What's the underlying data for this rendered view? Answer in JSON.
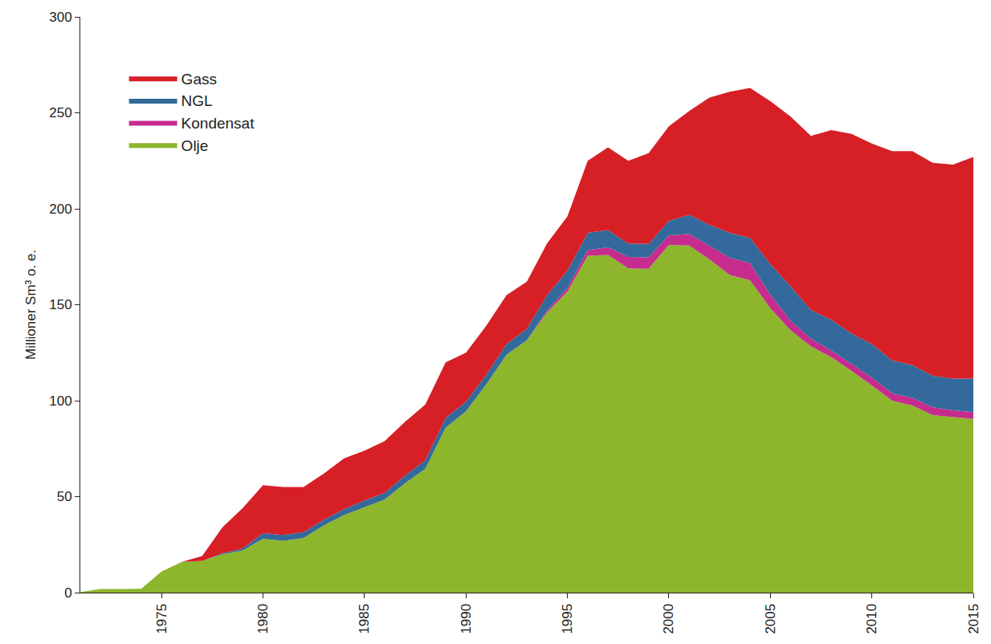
{
  "chart_data": {
    "type": "area",
    "stacked": true,
    "y_label": "Millioner Sm³ o. e.",
    "x": [
      1971,
      1972,
      1973,
      1974,
      1975,
      1976,
      1977,
      1978,
      1979,
      1980,
      1981,
      1982,
      1983,
      1984,
      1985,
      1986,
      1987,
      1988,
      1989,
      1990,
      1991,
      1992,
      1993,
      1994,
      1995,
      1996,
      1997,
      1998,
      1999,
      2000,
      2001,
      2002,
      2003,
      2004,
      2005,
      2006,
      2007,
      2008,
      2009,
      2010,
      2011,
      2012,
      2013,
      2014,
      2015
    ],
    "series": [
      {
        "name": "Olje",
        "color": "#8db62c",
        "values": [
          0.3,
          1.9,
          1.9,
          2,
          11,
          16,
          16.5,
          20,
          22,
          28,
          27,
          28.5,
          35,
          40.5,
          44.5,
          48.5,
          57,
          64.5,
          86,
          94.5,
          108.5,
          124,
          131.5,
          146,
          156.8,
          175.5,
          175.9,
          168.9,
          168.7,
          181.2,
          180.9,
          173.6,
          165.5,
          162.8,
          148.1,
          136.6,
          128.3,
          122.7,
          115.5,
          108,
          100,
          97.5,
          92.5,
          91.5,
          90.5
        ]
      },
      {
        "name": "Kondensat",
        "color": "#c62c8e",
        "values": [
          0,
          0,
          0,
          0,
          0,
          0,
          0,
          0,
          0,
          0,
          0,
          0,
          0,
          0,
          0,
          0,
          0,
          0,
          0,
          0,
          0,
          0,
          0,
          1,
          2,
          3,
          4,
          6,
          6,
          5,
          6,
          7,
          9,
          9,
          7,
          5,
          4,
          3.5,
          3.5,
          4,
          4,
          4,
          4,
          3.5,
          3.5
        ]
      },
      {
        "name": "NGL",
        "color": "#336a9b",
        "values": [
          0,
          0,
          0,
          0,
          0,
          0,
          0,
          0.5,
          1,
          3,
          3,
          3,
          3,
          3,
          3.5,
          3.5,
          4,
          4.5,
          5,
          5,
          5,
          5.5,
          6,
          8,
          9,
          9,
          9,
          7,
          7,
          7.5,
          10,
          11,
          13,
          13,
          16,
          18,
          15,
          16,
          16,
          17.5,
          17,
          17,
          16.5,
          16.5,
          17.5
        ]
      },
      {
        "name": "Gass",
        "color": "#d71f26",
        "values": [
          0,
          0,
          0,
          0,
          0,
          0,
          2.5,
          13.5,
          21,
          25,
          25,
          23.5,
          24,
          26.5,
          26,
          27,
          28,
          29,
          29,
          25.5,
          25.5,
          25.5,
          24.5,
          27,
          28.2,
          37.5,
          43.1,
          43.1,
          47.3,
          49.3,
          54,
          66.4,
          73.5,
          78.2,
          85,
          88.4,
          90.7,
          98.8,
          104,
          104.5,
          109,
          111.5,
          111,
          111.5,
          115.5
        ]
      }
    ],
    "xlim": [
      1971,
      2015
    ],
    "xticks": [
      1975,
      1980,
      1985,
      1990,
      1995,
      2000,
      2005,
      2010,
      2015
    ],
    "ylim": [
      0,
      300
    ],
    "yticks": [
      0,
      50,
      100,
      150,
      200,
      250,
      300
    ],
    "grid": false,
    "legend": "top-left"
  }
}
